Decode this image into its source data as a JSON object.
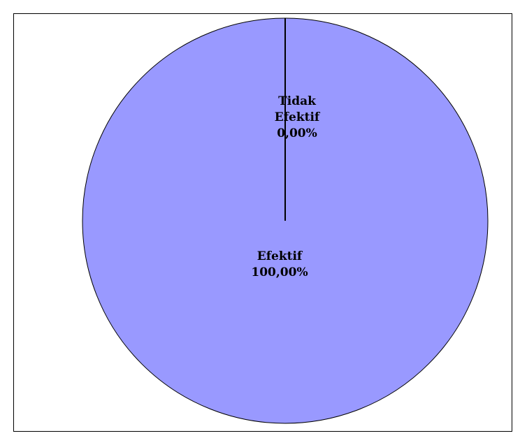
{
  "chart_data": {
    "type": "pie",
    "categories": [
      "Tidak Efektif",
      "Efektif"
    ],
    "values": [
      0.0,
      100.0
    ],
    "slices": [
      {
        "name_lines": [
          "Tidak",
          "Efektif"
        ],
        "percent_label": "0,00%",
        "value": 0.0,
        "color": "#9999ff"
      },
      {
        "name_lines": [
          "Efektif"
        ],
        "percent_label": "100,00%",
        "value": 100.0,
        "color": "#9999ff"
      }
    ],
    "title": "",
    "legend": "none"
  }
}
